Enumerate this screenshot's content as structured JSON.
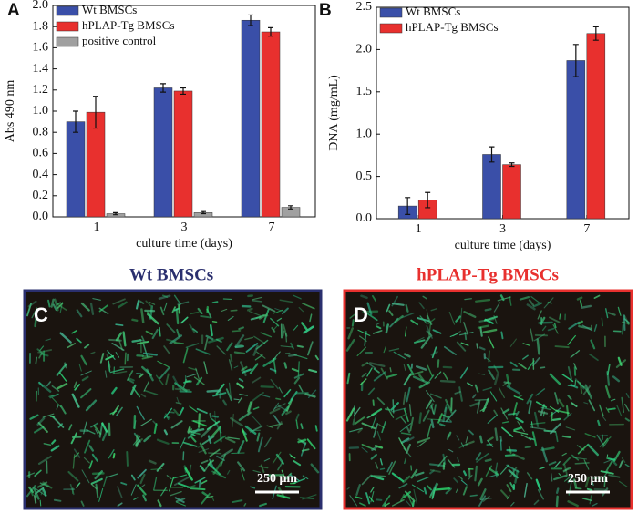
{
  "chart_data": [
    {
      "type": "bar",
      "panel": "A",
      "xlabel": "culture time (days)",
      "ylabel": "Abs 490 nm",
      "categories": [
        "1",
        "3",
        "7"
      ],
      "series": [
        {
          "name": "Wt BMSCs",
          "color": "#3a4fa8",
          "values": [
            0.9,
            1.22,
            1.86
          ],
          "errors": [
            0.1,
            0.04,
            0.05
          ]
        },
        {
          "name": "hPLAP-Tg BMSCs",
          "color": "#e8302e",
          "values": [
            0.99,
            1.19,
            1.75
          ],
          "errors": [
            0.15,
            0.03,
            0.04
          ]
        },
        {
          "name": "positive control",
          "color": "#a0a0a0",
          "values": [
            0.03,
            0.04,
            0.09
          ],
          "errors": [
            0.01,
            0.01,
            0.015
          ]
        }
      ],
      "ylim": [
        0,
        2.0
      ],
      "yticks": [
        {
          "value": 0,
          "label": "0.0"
        },
        0.2,
        0.4,
        0.6,
        0.8,
        {
          "value": 1,
          "label": "1.0"
        },
        1.2,
        1.4,
        1.6,
        1.8,
        {
          "value": 2,
          "label": "2.0"
        }
      ]
    },
    {
      "type": "bar",
      "panel": "B",
      "xlabel": "culture time (days)",
      "ylabel": "DNA (mg/mL)",
      "categories": [
        "1",
        "3",
        "7"
      ],
      "series": [
        {
          "name": "Wt BMSCs",
          "color": "#3a4fa8",
          "values": [
            0.15,
            0.76,
            1.87
          ],
          "errors": [
            0.1,
            0.09,
            0.19
          ]
        },
        {
          "name": "hPLAP-Tg BMSCs",
          "color": "#e8302e",
          "values": [
            0.22,
            0.64,
            2.19
          ],
          "errors": [
            0.09,
            0.02,
            0.08
          ]
        }
      ],
      "ylim": [
        0,
        2.5
      ],
      "yticks": [
        {
          "value": 0,
          "label": "0.0"
        },
        0.5,
        {
          "value": 1,
          "label": "1.0"
        },
        1.5,
        {
          "value": 2,
          "label": "2.0"
        },
        2.5
      ]
    }
  ],
  "images": [
    {
      "panel": "C",
      "title": "Wt BMSCs",
      "scale_bar": "250 μm"
    },
    {
      "panel": "D",
      "title": "hPLAP-Tg BMSCs",
      "scale_bar": "250 μm"
    }
  ]
}
